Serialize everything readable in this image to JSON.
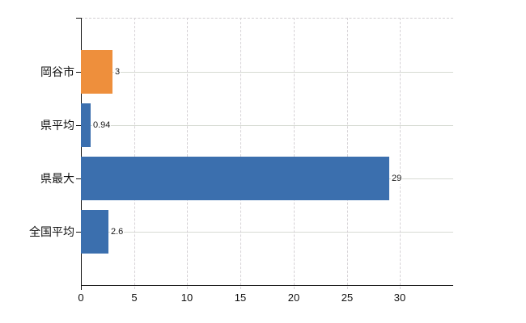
{
  "chart_data": {
    "type": "bar",
    "orientation": "horizontal",
    "title": "",
    "categories": [
      "岡谷市",
      "県平均",
      "県最大",
      "全国平均"
    ],
    "values": [
      3,
      0.94,
      29,
      2.6
    ],
    "value_labels": [
      "3",
      "0.94",
      "29",
      "2.6"
    ],
    "series": [
      {
        "name": "value",
        "values": [
          3,
          0.94,
          29,
          2.6
        ],
        "colors": [
          "#EE8F3C",
          "#3B6FAE",
          "#3B6FAE",
          "#3B6FAE"
        ]
      }
    ],
    "xlabel": "",
    "ylabel": "",
    "xlim": [
      0,
      35
    ],
    "x_ticks": [
      0,
      5,
      10,
      15,
      20,
      25,
      30
    ],
    "x_tick_labels": [
      "0",
      "5",
      "10",
      "15",
      "20",
      "25",
      "30"
    ],
    "grid": "vertical dashed gridlines at each x tick, horizontal solid line at each category center",
    "legend_position": "none"
  },
  "style": {
    "background": "#ffffff",
    "axis_color": "#141414",
    "vertical_grid_color": "#d6d2d6",
    "horizontal_grid_color": "#d7dbd3",
    "minor_tick_color": "#c9c9c9",
    "text_color": "#111111",
    "orange_bar_color": "#EE8F3C",
    "blue_bar_color": "#3B6FAE"
  }
}
